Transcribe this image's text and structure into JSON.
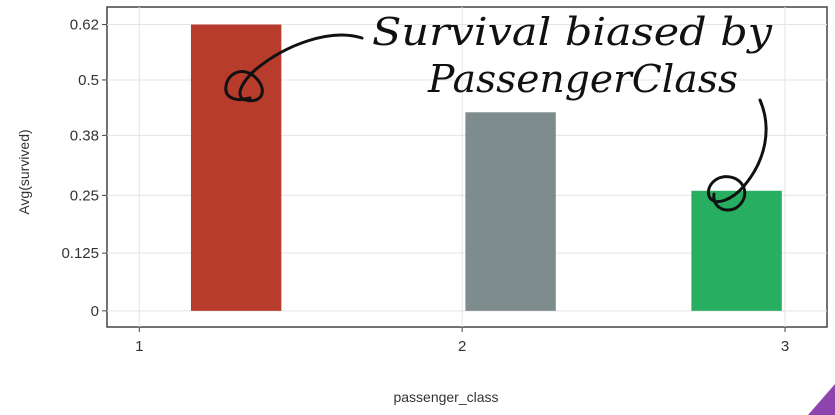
{
  "chart_data": {
    "type": "bar",
    "x": [
      1.3,
      2.15,
      2.85
    ],
    "values": [
      0.62,
      0.43,
      0.26
    ],
    "colors": [
      "#b83c2b",
      "#7f8c8d",
      "#27ae60"
    ],
    "xlabel": "passenger_class",
    "ylabel": "Avg(survived)",
    "xlim": [
      0.9,
      3.13
    ],
    "ylim": [
      -0.035,
      0.658
    ],
    "xticks": [
      "1",
      "2",
      "3"
    ],
    "yticks": [
      "0",
      "0.125",
      "0.25",
      "0.38",
      "0.5",
      "0.62"
    ],
    "grid": true,
    "annotation": {
      "line1": "Survival biased by",
      "line2": "PassengerClass"
    }
  }
}
